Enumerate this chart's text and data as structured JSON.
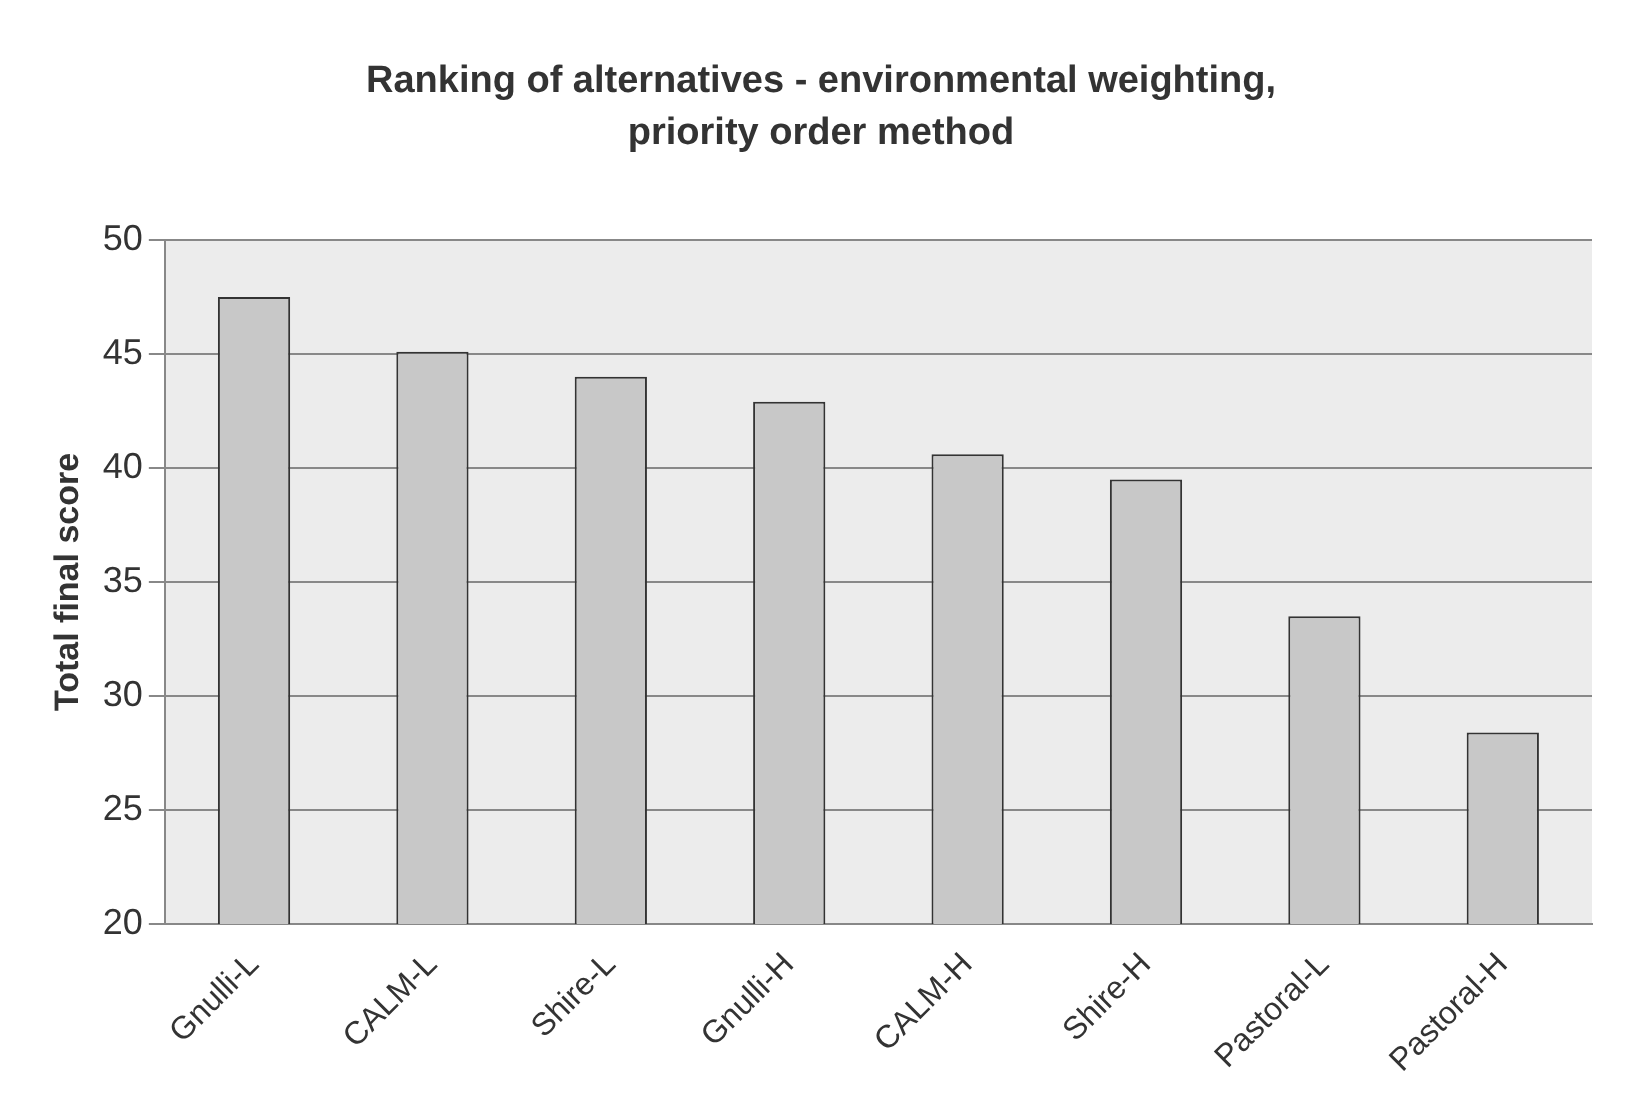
{
  "chart_data": {
    "type": "bar",
    "title": "Ranking of alternatives - environmental weighting, priority order method",
    "ylabel": "Total final score",
    "categories": [
      "Gnulli-L",
      "CALM-L",
      "Shire-L",
      "Gnulli-H",
      "CALM-H",
      "Shire-H",
      "Pastoral-L",
      "Pastoral-H"
    ],
    "values": [
      47.5,
      45.1,
      44.0,
      42.9,
      40.6,
      39.5,
      33.5,
      28.4
    ],
    "color": "#c8c8c8",
    "ylim": [
      20,
      50
    ],
    "yticks": [
      20,
      25,
      30,
      35,
      40,
      45,
      50
    ],
    "grid": "y",
    "legend": false
  }
}
